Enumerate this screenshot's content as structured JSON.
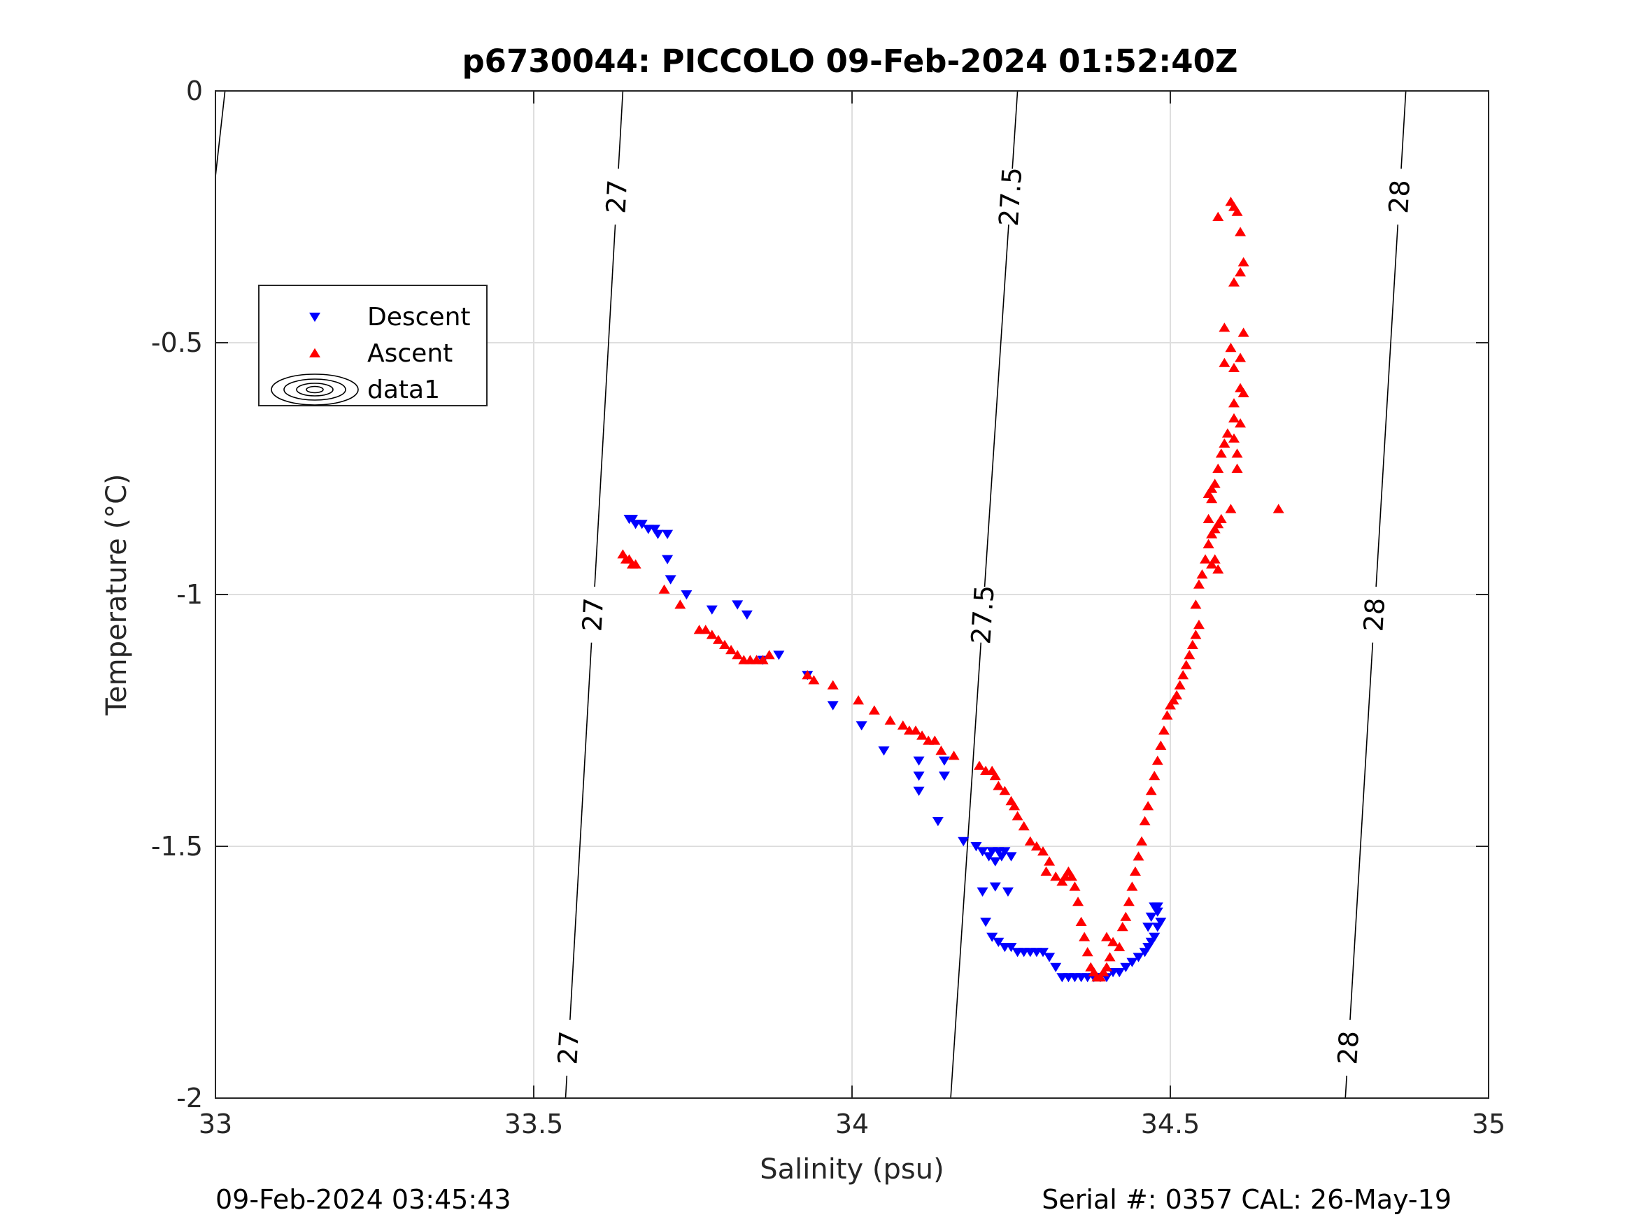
{
  "chart_data": {
    "type": "scatter",
    "title": "p6730044: PICCOLO 09-Feb-2024 01:52:40Z",
    "xlabel": "Salinity (psu)",
    "ylabel": "Temperature (°C)",
    "xlim": [
      33,
      35
    ],
    "ylim": [
      -2,
      0
    ],
    "xticks": [
      33,
      33.5,
      34,
      34.5,
      35
    ],
    "xtick_labels": [
      "33",
      "33.5",
      "34",
      "34.5",
      "35"
    ],
    "yticks": [
      0,
      -0.5,
      -1,
      -1.5,
      -2
    ],
    "ytick_labels": [
      "0",
      "-0.5",
      "-1",
      "-1.5",
      "-2"
    ],
    "grid": true,
    "legend_position": "upper-left",
    "series": [
      {
        "name": "Descent",
        "marker": "triangle-down",
        "color": "#0000ff",
        "points": [
          [
            33.65,
            -0.85
          ],
          [
            33.655,
            -0.85
          ],
          [
            33.66,
            -0.86
          ],
          [
            33.67,
            -0.86
          ],
          [
            33.68,
            -0.87
          ],
          [
            33.69,
            -0.87
          ],
          [
            33.695,
            -0.88
          ],
          [
            33.71,
            -0.88
          ],
          [
            33.71,
            -0.93
          ],
          [
            33.715,
            -0.97
          ],
          [
            33.74,
            -1.0
          ],
          [
            33.78,
            -1.03
          ],
          [
            33.82,
            -1.02
          ],
          [
            33.835,
            -1.04
          ],
          [
            33.86,
            -1.13
          ],
          [
            33.885,
            -1.12
          ],
          [
            33.93,
            -1.16
          ],
          [
            33.97,
            -1.22
          ],
          [
            34.015,
            -1.26
          ],
          [
            34.05,
            -1.31
          ],
          [
            34.105,
            -1.33
          ],
          [
            34.105,
            -1.36
          ],
          [
            34.105,
            -1.39
          ],
          [
            34.135,
            -1.45
          ],
          [
            34.145,
            -1.33
          ],
          [
            34.145,
            -1.36
          ],
          [
            34.175,
            -1.49
          ],
          [
            34.195,
            -1.5
          ],
          [
            34.205,
            -1.51
          ],
          [
            34.215,
            -1.52
          ],
          [
            34.22,
            -1.51
          ],
          [
            34.225,
            -1.53
          ],
          [
            34.23,
            -1.51
          ],
          [
            34.235,
            -1.52
          ],
          [
            34.24,
            -1.51
          ],
          [
            34.25,
            -1.52
          ],
          [
            34.205,
            -1.59
          ],
          [
            34.225,
            -1.58
          ],
          [
            34.245,
            -1.59
          ],
          [
            34.21,
            -1.65
          ],
          [
            34.22,
            -1.68
          ],
          [
            34.23,
            -1.69
          ],
          [
            34.24,
            -1.7
          ],
          [
            34.25,
            -1.7
          ],
          [
            34.26,
            -1.71
          ],
          [
            34.27,
            -1.71
          ],
          [
            34.28,
            -1.71
          ],
          [
            34.29,
            -1.71
          ],
          [
            34.3,
            -1.71
          ],
          [
            34.31,
            -1.72
          ],
          [
            34.32,
            -1.74
          ],
          [
            34.33,
            -1.76
          ],
          [
            34.34,
            -1.76
          ],
          [
            34.35,
            -1.76
          ],
          [
            34.36,
            -1.76
          ],
          [
            34.37,
            -1.76
          ],
          [
            34.38,
            -1.76
          ],
          [
            34.39,
            -1.76
          ],
          [
            34.4,
            -1.76
          ],
          [
            34.41,
            -1.75
          ],
          [
            34.42,
            -1.75
          ],
          [
            34.43,
            -1.74
          ],
          [
            34.44,
            -1.73
          ],
          [
            34.45,
            -1.72
          ],
          [
            34.46,
            -1.71
          ],
          [
            34.465,
            -1.7
          ],
          [
            34.47,
            -1.69
          ],
          [
            34.475,
            -1.68
          ],
          [
            34.48,
            -1.66
          ],
          [
            34.485,
            -1.65
          ],
          [
            34.48,
            -1.63
          ],
          [
            34.475,
            -1.62
          ],
          [
            34.48,
            -1.62
          ],
          [
            34.47,
            -1.64
          ],
          [
            34.465,
            -1.66
          ]
        ]
      },
      {
        "name": "Ascent",
        "marker": "triangle-up",
        "color": "#ff0000",
        "points": [
          [
            33.64,
            -0.92
          ],
          [
            33.645,
            -0.93
          ],
          [
            33.65,
            -0.93
          ],
          [
            33.655,
            -0.94
          ],
          [
            33.66,
            -0.94
          ],
          [
            33.705,
            -0.99
          ],
          [
            33.73,
            -1.02
          ],
          [
            33.76,
            -1.07
          ],
          [
            33.77,
            -1.07
          ],
          [
            33.78,
            -1.08
          ],
          [
            33.79,
            -1.09
          ],
          [
            33.8,
            -1.1
          ],
          [
            33.81,
            -1.11
          ],
          [
            33.82,
            -1.12
          ],
          [
            33.83,
            -1.13
          ],
          [
            33.84,
            -1.13
          ],
          [
            33.85,
            -1.13
          ],
          [
            33.86,
            -1.13
          ],
          [
            33.87,
            -1.12
          ],
          [
            33.93,
            -1.16
          ],
          [
            33.94,
            -1.17
          ],
          [
            33.97,
            -1.18
          ],
          [
            34.01,
            -1.21
          ],
          [
            34.035,
            -1.23
          ],
          [
            34.06,
            -1.25
          ],
          [
            34.08,
            -1.26
          ],
          [
            34.09,
            -1.27
          ],
          [
            34.1,
            -1.27
          ],
          [
            34.11,
            -1.28
          ],
          [
            34.12,
            -1.29
          ],
          [
            34.13,
            -1.29
          ],
          [
            34.14,
            -1.31
          ],
          [
            34.16,
            -1.32
          ],
          [
            34.2,
            -1.34
          ],
          [
            34.21,
            -1.35
          ],
          [
            34.22,
            -1.35
          ],
          [
            34.225,
            -1.36
          ],
          [
            34.23,
            -1.38
          ],
          [
            34.24,
            -1.39
          ],
          [
            34.25,
            -1.41
          ],
          [
            34.255,
            -1.42
          ],
          [
            34.26,
            -1.44
          ],
          [
            34.27,
            -1.46
          ],
          [
            34.28,
            -1.49
          ],
          [
            34.29,
            -1.5
          ],
          [
            34.3,
            -1.51
          ],
          [
            34.31,
            -1.53
          ],
          [
            34.305,
            -1.55
          ],
          [
            34.32,
            -1.56
          ],
          [
            34.33,
            -1.57
          ],
          [
            34.335,
            -1.56
          ],
          [
            34.34,
            -1.55
          ],
          [
            34.345,
            -1.56
          ],
          [
            34.35,
            -1.58
          ],
          [
            34.355,
            -1.61
          ],
          [
            34.36,
            -1.65
          ],
          [
            34.365,
            -1.68
          ],
          [
            34.37,
            -1.71
          ],
          [
            34.375,
            -1.74
          ],
          [
            34.38,
            -1.75
          ],
          [
            34.385,
            -1.76
          ],
          [
            34.39,
            -1.76
          ],
          [
            34.395,
            -1.75
          ],
          [
            34.4,
            -1.74
          ],
          [
            34.405,
            -1.72
          ],
          [
            34.4,
            -1.68
          ],
          [
            34.41,
            -1.69
          ],
          [
            34.42,
            -1.7
          ],
          [
            34.425,
            -1.66
          ],
          [
            34.43,
            -1.64
          ],
          [
            34.435,
            -1.61
          ],
          [
            34.44,
            -1.58
          ],
          [
            34.445,
            -1.55
          ],
          [
            34.45,
            -1.52
          ],
          [
            34.455,
            -1.49
          ],
          [
            34.46,
            -1.45
          ],
          [
            34.465,
            -1.42
          ],
          [
            34.47,
            -1.39
          ],
          [
            34.475,
            -1.36
          ],
          [
            34.48,
            -1.33
          ],
          [
            34.485,
            -1.3
          ],
          [
            34.49,
            -1.27
          ],
          [
            34.495,
            -1.24
          ],
          [
            34.5,
            -1.22
          ],
          [
            34.505,
            -1.21
          ],
          [
            34.51,
            -1.2
          ],
          [
            34.515,
            -1.18
          ],
          [
            34.52,
            -1.16
          ],
          [
            34.525,
            -1.14
          ],
          [
            34.53,
            -1.12
          ],
          [
            34.535,
            -1.1
          ],
          [
            34.54,
            -1.08
          ],
          [
            34.545,
            -1.06
          ],
          [
            34.54,
            -1.02
          ],
          [
            34.545,
            -0.98
          ],
          [
            34.55,
            -0.96
          ],
          [
            34.555,
            -0.93
          ],
          [
            34.56,
            -0.9
          ],
          [
            34.565,
            -0.88
          ],
          [
            34.56,
            -0.85
          ],
          [
            34.565,
            -0.81
          ],
          [
            34.57,
            -0.78
          ],
          [
            34.575,
            -0.75
          ],
          [
            34.58,
            -0.72
          ],
          [
            34.585,
            -0.7
          ],
          [
            34.59,
            -0.68
          ],
          [
            34.6,
            -0.65
          ],
          [
            34.6,
            -0.69
          ],
          [
            34.605,
            -0.72
          ],
          [
            34.605,
            -0.75
          ],
          [
            34.61,
            -0.66
          ],
          [
            34.6,
            -0.62
          ],
          [
            34.6,
            -0.55
          ],
          [
            34.61,
            -0.53
          ],
          [
            34.585,
            -0.54
          ],
          [
            34.595,
            -0.51
          ],
          [
            34.615,
            -0.48
          ],
          [
            34.585,
            -0.47
          ],
          [
            34.6,
            -0.38
          ],
          [
            34.61,
            -0.36
          ],
          [
            34.615,
            -0.34
          ],
          [
            34.61,
            -0.28
          ],
          [
            34.605,
            -0.24
          ],
          [
            34.6,
            -0.23
          ],
          [
            34.595,
            -0.22
          ],
          [
            34.575,
            -0.25
          ],
          [
            34.615,
            -0.6
          ],
          [
            34.61,
            -0.59
          ],
          [
            34.58,
            -0.85
          ],
          [
            34.575,
            -0.86
          ],
          [
            34.57,
            -0.87
          ],
          [
            34.57,
            -0.93
          ],
          [
            34.575,
            -0.95
          ],
          [
            34.56,
            -0.8
          ],
          [
            34.565,
            -0.79
          ],
          [
            34.67,
            -0.83
          ],
          [
            34.595,
            -0.83
          ],
          [
            34.56,
            -0.9
          ],
          [
            34.565,
            -0.94
          ]
        ]
      },
      {
        "name": "data1",
        "marker": "contour",
        "color": "#000000",
        "contour_levels": [
          {
            "label": "27",
            "line": [
              [
                33.55,
                -2
              ],
              [
                33.64,
                0
              ]
            ],
            "label_y": [
              -0.21,
              -1.04,
              -1.9
            ]
          },
          {
            "label": "27.5",
            "line": [
              [
                34.155,
                -2
              ],
              [
                34.26,
                0
              ]
            ],
            "label_y": [
              -0.21,
              -1.04
            ]
          },
          {
            "label": "28",
            "line": [
              [
                34.775,
                -2
              ],
              [
                34.87,
                0
              ]
            ],
            "label_y": [
              -0.21,
              -1.04,
              -1.9
            ]
          }
        ],
        "extra_segment": [
          [
            33,
            -0.17
          ],
          [
            33.015,
            0
          ]
        ]
      }
    ]
  },
  "footer": {
    "timestamp": "09-Feb-2024 03:45:43",
    "serial_cal": "Serial #: 0357  CAL: 26-May-19"
  }
}
